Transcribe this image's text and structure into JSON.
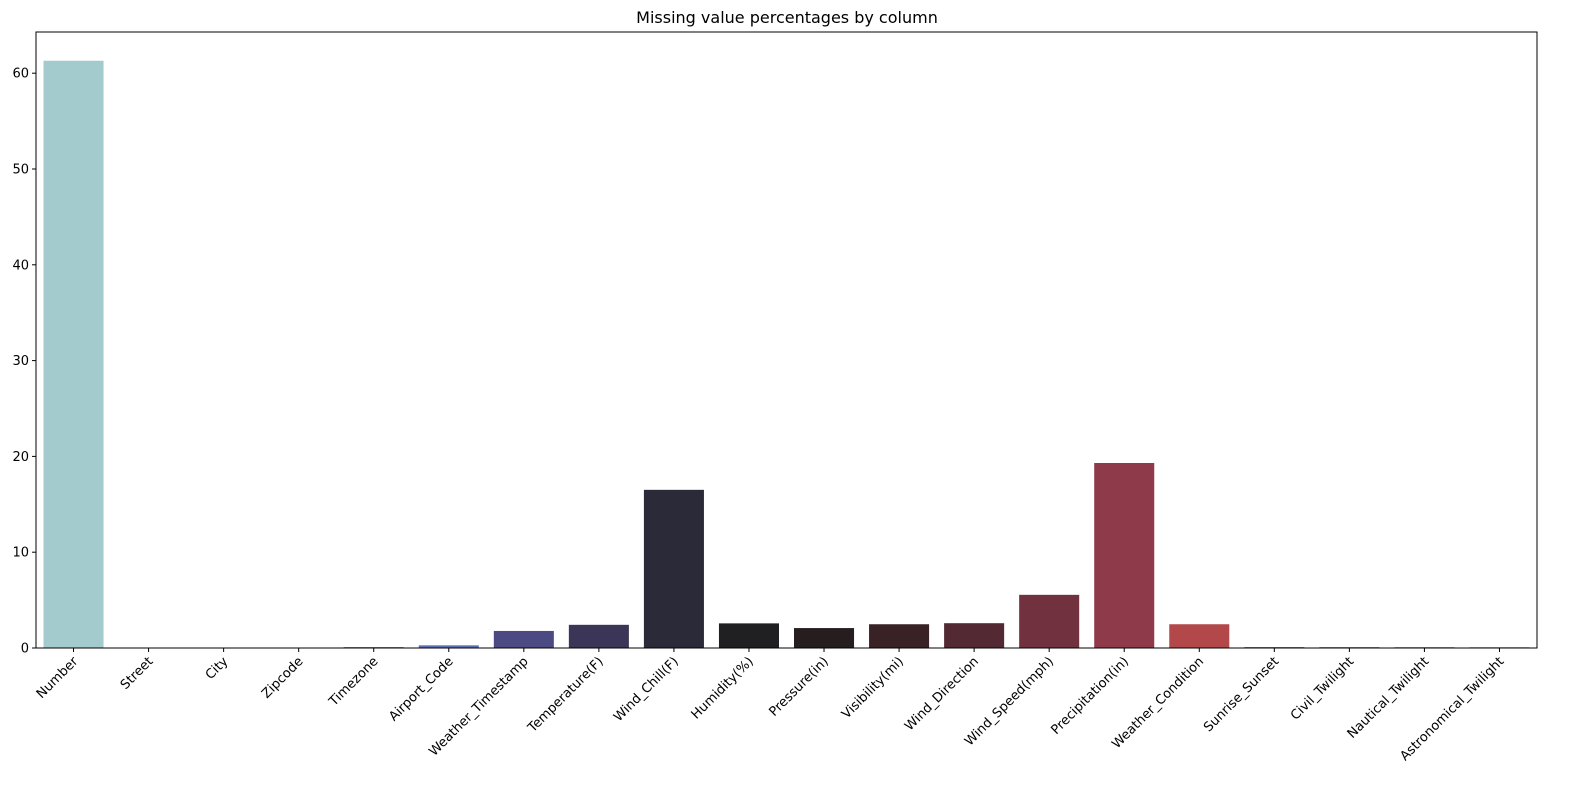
{
  "chart_data": {
    "type": "bar",
    "title": "Missing value percentages by column",
    "xlabel": "",
    "ylabel": "",
    "ylim": [
      0,
      64.3
    ],
    "yticks": [
      0,
      10,
      20,
      30,
      40,
      50,
      60
    ],
    "grid": false,
    "legend": "none",
    "categories": [
      "Number",
      "Street",
      "City",
      "Zipcode",
      "Timezone",
      "Airport_Code",
      "Weather_Timestamp",
      "Temperature(F)",
      "Wind_Chill(F)",
      "Humidity(%)",
      "Pressure(in)",
      "Visibility(mi)",
      "Wind_Direction",
      "Wind_Speed(mph)",
      "Precipitation(in)",
      "Weather_Condition",
      "Sunrise_Sunset",
      "Civil_Twilight",
      "Nautical_Twilight",
      "Astronomical_Twilight"
    ],
    "values": [
      61.3,
      0.0,
      0.005,
      0.03,
      0.1,
      0.28,
      1.78,
      2.42,
      16.51,
      2.57,
      2.08,
      2.48,
      2.59,
      5.55,
      19.31,
      2.48,
      0.1,
      0.1,
      0.1,
      0.1
    ],
    "colors": [
      "#a3cacd",
      "#9ebfcd",
      "#8fb1cc",
      "#7e9fc9",
      "#6e88c3",
      "#5f6fb6",
      "#4c4a83",
      "#3b3658",
      "#2b2a39",
      "#202023",
      "#251d1e",
      "#382225",
      "#532a33",
      "#72313f",
      "#8f3a4b",
      "#b3484a",
      "#c75e46",
      "#d47a52",
      "#de9a68",
      "#e6b987"
    ]
  }
}
